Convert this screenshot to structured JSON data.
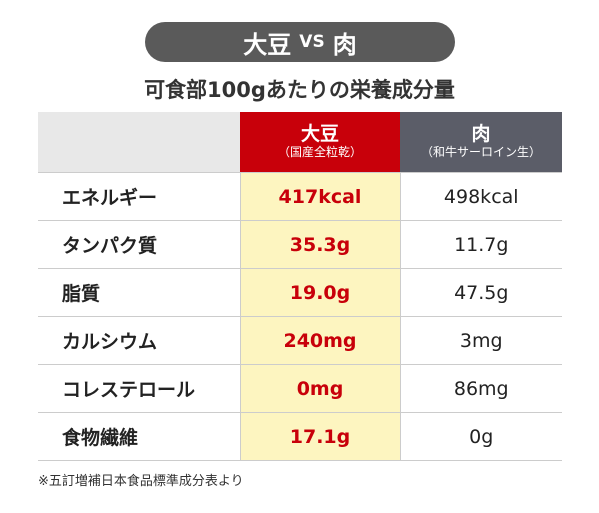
{
  "header": {
    "left": "大豆",
    "vs": "VS",
    "right": "肉",
    "subtitle": "可食部100gあたりの栄養成分量"
  },
  "table": {
    "columns": [
      {
        "name": "大豆",
        "note": "（国産全粒乾）"
      },
      {
        "name": "肉",
        "note": "（和牛サーロイン生）"
      }
    ],
    "rows": [
      [
        "エネルギー",
        "417kcal",
        "498kcal"
      ],
      [
        "タンパク質",
        "35.3g",
        "11.7g"
      ],
      [
        "脂質",
        "19.0g",
        "47.5g"
      ],
      [
        "カルシウム",
        "240mg",
        "3mg"
      ],
      [
        "コレステロール",
        "0mg",
        "86mg"
      ],
      [
        "食物繊維",
        "17.1g",
        "0g"
      ]
    ]
  },
  "footnote": "※五訂増補日本食品標準成分表より"
}
